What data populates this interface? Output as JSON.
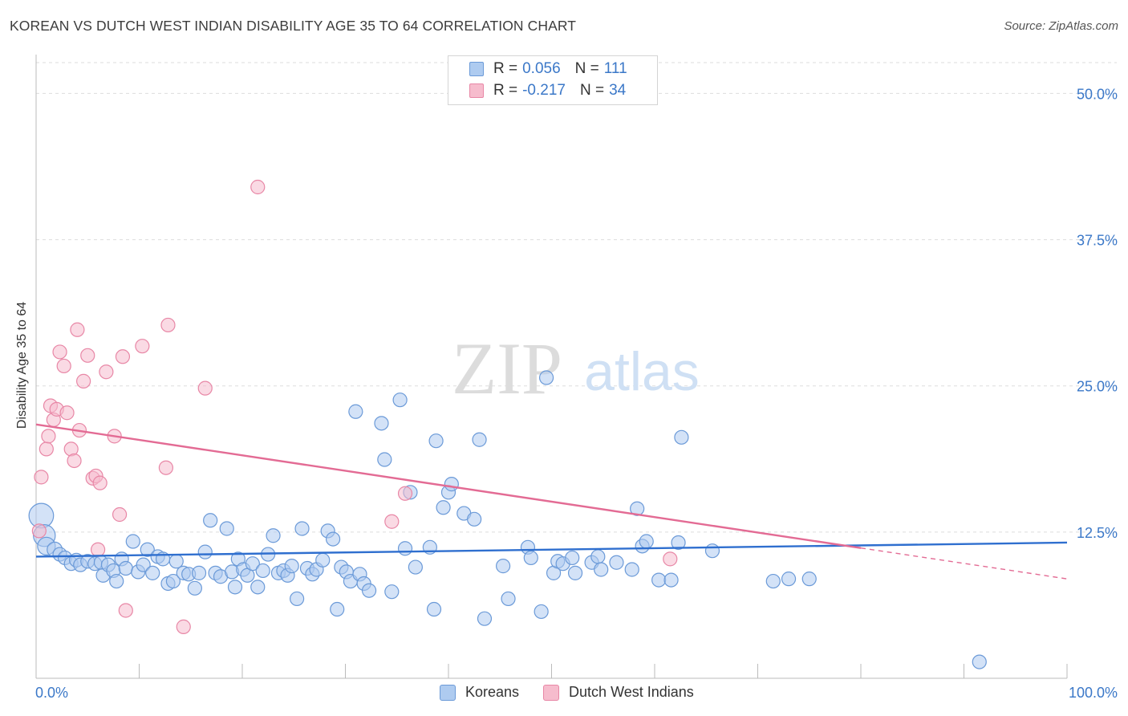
{
  "header": {
    "title": "KOREAN VS DUTCH WEST INDIAN DISABILITY AGE 35 TO 64 CORRELATION CHART",
    "source": "Source: ZipAtlas.com"
  },
  "watermark": {
    "part1": "ZIP",
    "part2": "atlas"
  },
  "legend": {
    "rows": [
      {
        "r_label": "R =",
        "r_value": "0.056",
        "n_label": "N =",
        "n_value": "111"
      },
      {
        "r_label": "R =",
        "r_value": "-0.217",
        "n_label": "N =",
        "n_value": "34"
      }
    ]
  },
  "colors": {
    "korean_fill": "#aecbf0",
    "korean_stroke": "#6b9ad8",
    "korean_line": "#2f6fcf",
    "dutch_fill": "#f6bccd",
    "dutch_stroke": "#e887a6",
    "dutch_line": "#e36b94",
    "axis_text": "#3b78c8",
    "grid": "#dddddd"
  },
  "chart_data": {
    "type": "scatter",
    "title": "KOREAN VS DUTCH WEST INDIAN DISABILITY AGE 35 TO 64 CORRELATION CHART",
    "xlabel": "",
    "ylabel": "Disability Age 35 to 64",
    "xlim": [
      0,
      100
    ],
    "ylim": [
      0,
      52.5
    ],
    "x_tick_labels": [
      "0.0%",
      "100.0%"
    ],
    "y_ticks": [
      12.5,
      25.0,
      37.5,
      50.0
    ],
    "y_tick_labels": [
      "12.5%",
      "25.0%",
      "37.5%",
      "50.0%"
    ],
    "grid": true,
    "legend_position": "top-center",
    "series": [
      {
        "name": "Koreans",
        "r": 0.056,
        "n": 111,
        "trend": {
          "x": [
            0,
            100
          ],
          "y": [
            10.4,
            11.6
          ],
          "dashed_from": null
        },
        "points": [
          {
            "x": 0.5,
            "y": 13.9,
            "s": 1.8
          },
          {
            "x": 0.8,
            "y": 12.2,
            "s": 1.6
          },
          {
            "x": 1.0,
            "y": 11.3,
            "s": 1.3
          },
          {
            "x": 1.8,
            "y": 11.0,
            "s": 1.1
          },
          {
            "x": 2.3,
            "y": 10.6
          },
          {
            "x": 2.8,
            "y": 10.3
          },
          {
            "x": 3.4,
            "y": 9.8
          },
          {
            "x": 3.9,
            "y": 10.1
          },
          {
            "x": 4.3,
            "y": 9.7
          },
          {
            "x": 5.0,
            "y": 10.0
          },
          {
            "x": 5.7,
            "y": 9.8
          },
          {
            "x": 6.3,
            "y": 9.9
          },
          {
            "x": 6.5,
            "y": 8.8
          },
          {
            "x": 7.0,
            "y": 9.7
          },
          {
            "x": 7.5,
            "y": 9.2
          },
          {
            "x": 7.8,
            "y": 8.3
          },
          {
            "x": 8.3,
            "y": 10.2
          },
          {
            "x": 8.7,
            "y": 9.4
          },
          {
            "x": 9.4,
            "y": 11.7
          },
          {
            "x": 9.9,
            "y": 9.1
          },
          {
            "x": 10.4,
            "y": 9.7
          },
          {
            "x": 10.8,
            "y": 11.0
          },
          {
            "x": 11.3,
            "y": 9.0
          },
          {
            "x": 11.8,
            "y": 10.4
          },
          {
            "x": 12.3,
            "y": 10.2
          },
          {
            "x": 12.8,
            "y": 8.1
          },
          {
            "x": 13.3,
            "y": 8.3
          },
          {
            "x": 13.6,
            "y": 10.0
          },
          {
            "x": 14.3,
            "y": 9.0
          },
          {
            "x": 14.8,
            "y": 8.9
          },
          {
            "x": 15.4,
            "y": 7.7
          },
          {
            "x": 15.8,
            "y": 9.0
          },
          {
            "x": 16.4,
            "y": 10.8
          },
          {
            "x": 16.9,
            "y": 13.5
          },
          {
            "x": 17.4,
            "y": 9.0
          },
          {
            "x": 17.9,
            "y": 8.7
          },
          {
            "x": 18.5,
            "y": 12.8
          },
          {
            "x": 19.0,
            "y": 9.1
          },
          {
            "x": 19.3,
            "y": 7.8
          },
          {
            "x": 19.6,
            "y": 10.2
          },
          {
            "x": 20.1,
            "y": 9.3
          },
          {
            "x": 20.5,
            "y": 8.8
          },
          {
            "x": 21.0,
            "y": 9.8
          },
          {
            "x": 21.5,
            "y": 7.8
          },
          {
            "x": 22.0,
            "y": 9.2
          },
          {
            "x": 22.5,
            "y": 10.6
          },
          {
            "x": 23.0,
            "y": 12.2
          },
          {
            "x": 23.5,
            "y": 9.0
          },
          {
            "x": 24.0,
            "y": 9.2
          },
          {
            "x": 24.4,
            "y": 8.8
          },
          {
            "x": 24.8,
            "y": 9.6
          },
          {
            "x": 25.3,
            "y": 6.8
          },
          {
            "x": 25.8,
            "y": 12.8
          },
          {
            "x": 26.3,
            "y": 9.4
          },
          {
            "x": 26.8,
            "y": 8.9
          },
          {
            "x": 27.2,
            "y": 9.3
          },
          {
            "x": 27.8,
            "y": 10.1
          },
          {
            "x": 28.3,
            "y": 12.6
          },
          {
            "x": 28.8,
            "y": 11.9
          },
          {
            "x": 29.2,
            "y": 5.9
          },
          {
            "x": 29.6,
            "y": 9.5
          },
          {
            "x": 30.1,
            "y": 9.1
          },
          {
            "x": 30.5,
            "y": 8.3
          },
          {
            "x": 31.0,
            "y": 22.8
          },
          {
            "x": 31.4,
            "y": 8.9
          },
          {
            "x": 31.8,
            "y": 8.1
          },
          {
            "x": 32.3,
            "y": 7.5
          },
          {
            "x": 33.5,
            "y": 21.8
          },
          {
            "x": 33.8,
            "y": 18.7
          },
          {
            "x": 34.5,
            "y": 7.4
          },
          {
            "x": 35.3,
            "y": 23.8
          },
          {
            "x": 35.8,
            "y": 11.1
          },
          {
            "x": 36.3,
            "y": 15.9
          },
          {
            "x": 36.8,
            "y": 9.5
          },
          {
            "x": 38.2,
            "y": 11.2
          },
          {
            "x": 38.6,
            "y": 5.9
          },
          {
            "x": 38.8,
            "y": 20.3
          },
          {
            "x": 39.5,
            "y": 14.6
          },
          {
            "x": 40.0,
            "y": 15.9
          },
          {
            "x": 40.3,
            "y": 16.6
          },
          {
            "x": 41.5,
            "y": 14.1
          },
          {
            "x": 42.5,
            "y": 13.6
          },
          {
            "x": 43.0,
            "y": 20.4
          },
          {
            "x": 43.5,
            "y": 5.1
          },
          {
            "x": 45.3,
            "y": 9.6
          },
          {
            "x": 45.8,
            "y": 6.8
          },
          {
            "x": 47.7,
            "y": 11.2
          },
          {
            "x": 48.0,
            "y": 10.3
          },
          {
            "x": 49.0,
            "y": 5.7
          },
          {
            "x": 49.5,
            "y": 25.7
          },
          {
            "x": 50.2,
            "y": 9.0
          },
          {
            "x": 50.6,
            "y": 10.0
          },
          {
            "x": 51.1,
            "y": 9.8
          },
          {
            "x": 52.0,
            "y": 10.3
          },
          {
            "x": 52.3,
            "y": 9.0
          },
          {
            "x": 53.9,
            "y": 9.9
          },
          {
            "x": 54.5,
            "y": 10.4
          },
          {
            "x": 54.8,
            "y": 9.3
          },
          {
            "x": 56.3,
            "y": 9.9
          },
          {
            "x": 57.8,
            "y": 9.3
          },
          {
            "x": 58.3,
            "y": 14.5
          },
          {
            "x": 58.8,
            "y": 11.3
          },
          {
            "x": 59.2,
            "y": 11.7
          },
          {
            "x": 60.4,
            "y": 8.4
          },
          {
            "x": 61.6,
            "y": 8.4
          },
          {
            "x": 62.3,
            "y": 11.6
          },
          {
            "x": 62.6,
            "y": 20.6
          },
          {
            "x": 65.6,
            "y": 10.9
          },
          {
            "x": 71.5,
            "y": 8.3
          },
          {
            "x": 73.0,
            "y": 8.5
          },
          {
            "x": 75.0,
            "y": 8.5
          },
          {
            "x": 91.5,
            "y": 1.4
          }
        ]
      },
      {
        "name": "Dutch West Indians",
        "r": -0.217,
        "n": 34,
        "trend": {
          "x": [
            0,
            100
          ],
          "y": [
            21.7,
            8.5
          ],
          "dashed_from": 80
        },
        "points": [
          {
            "x": 0.3,
            "y": 12.6
          },
          {
            "x": 0.5,
            "y": 17.2
          },
          {
            "x": 1.0,
            "y": 19.6
          },
          {
            "x": 1.2,
            "y": 20.7
          },
          {
            "x": 1.4,
            "y": 23.3
          },
          {
            "x": 1.7,
            "y": 22.1
          },
          {
            "x": 2.0,
            "y": 23.0
          },
          {
            "x": 2.3,
            "y": 27.9
          },
          {
            "x": 2.7,
            "y": 26.7
          },
          {
            "x": 3.0,
            "y": 22.7
          },
          {
            "x": 3.4,
            "y": 19.6
          },
          {
            "x": 3.7,
            "y": 18.6
          },
          {
            "x": 4.0,
            "y": 29.8
          },
          {
            "x": 4.2,
            "y": 21.2
          },
          {
            "x": 4.6,
            "y": 25.4
          },
          {
            "x": 5.0,
            "y": 27.6
          },
          {
            "x": 5.5,
            "y": 17.1
          },
          {
            "x": 5.8,
            "y": 17.3
          },
          {
            "x": 6.2,
            "y": 16.7
          },
          {
            "x": 6.0,
            "y": 11.0
          },
          {
            "x": 6.8,
            "y": 26.2
          },
          {
            "x": 7.6,
            "y": 20.7
          },
          {
            "x": 8.1,
            "y": 14.0
          },
          {
            "x": 8.4,
            "y": 27.5
          },
          {
            "x": 8.7,
            "y": 5.8
          },
          {
            "x": 10.3,
            "y": 28.4
          },
          {
            "x": 12.8,
            "y": 30.2
          },
          {
            "x": 12.6,
            "y": 18.0
          },
          {
            "x": 14.3,
            "y": 4.4
          },
          {
            "x": 16.4,
            "y": 24.8
          },
          {
            "x": 21.5,
            "y": 42.0
          },
          {
            "x": 34.5,
            "y": 13.4
          },
          {
            "x": 35.8,
            "y": 15.8
          },
          {
            "x": 61.5,
            "y": 10.2
          }
        ]
      }
    ]
  }
}
